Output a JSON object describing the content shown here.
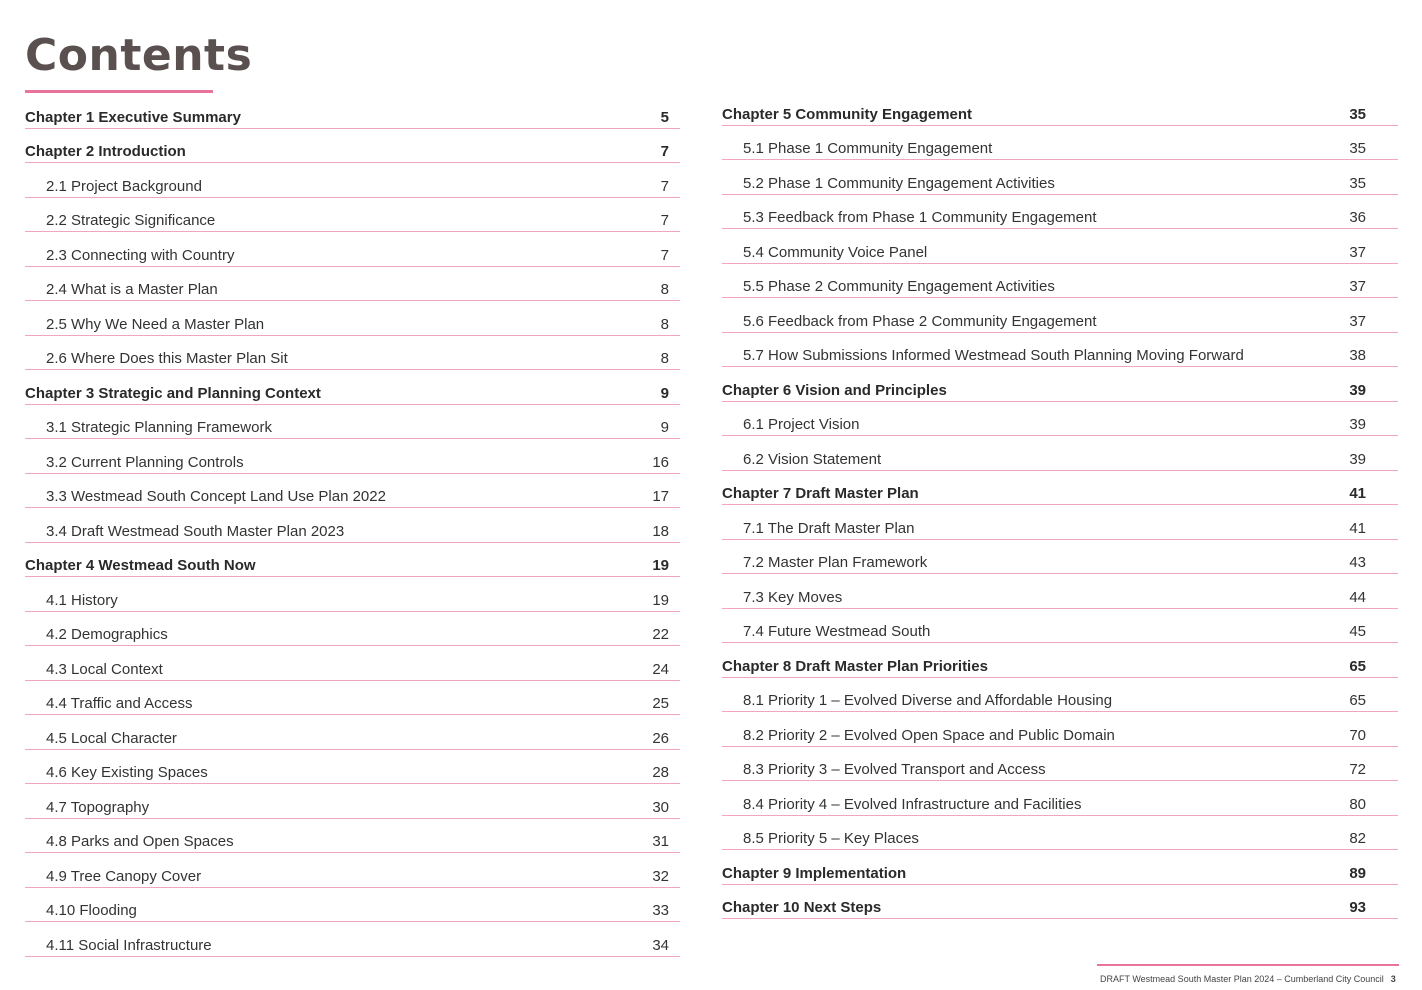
{
  "page": {
    "title": "Contents",
    "accent_color": "#e8739b",
    "rule_color": "#f2a5bd"
  },
  "toc": {
    "left": [
      {
        "level": "chapter",
        "label": "Chapter 1 Executive Summary",
        "page": "5"
      },
      {
        "level": "chapter",
        "label": "Chapter 2 Introduction",
        "page": "7"
      },
      {
        "level": "section",
        "label": "2.1 Project Background",
        "page": "7"
      },
      {
        "level": "section",
        "label": "2.2 Strategic Significance",
        "page": "7"
      },
      {
        "level": "section",
        "label": "2.3 Connecting with Country",
        "page": "7"
      },
      {
        "level": "section",
        "label": "2.4 What is a Master Plan",
        "page": "8"
      },
      {
        "level": "section",
        "label": "2.5 Why We Need a Master Plan",
        "page": "8"
      },
      {
        "level": "section",
        "label": "2.6 Where Does this Master Plan Sit",
        "page": "8"
      },
      {
        "level": "chapter",
        "label": "Chapter 3 Strategic and Planning Context",
        "page": "9"
      },
      {
        "level": "section",
        "label": "3.1 Strategic Planning Framework",
        "page": "9"
      },
      {
        "level": "section",
        "label": "3.2 Current Planning Controls",
        "page": "16"
      },
      {
        "level": "section",
        "label": "3.3 Westmead South Concept Land Use Plan 2022",
        "page": "17"
      },
      {
        "level": "section",
        "label": "3.4 Draft Westmead South Master Plan 2023",
        "page": "18"
      },
      {
        "level": "chapter",
        "label": "Chapter 4 Westmead South Now",
        "page": "19"
      },
      {
        "level": "section",
        "label": "4.1 History",
        "page": "19"
      },
      {
        "level": "section",
        "label": "4.2 Demographics",
        "page": "22"
      },
      {
        "level": "section",
        "label": "4.3 Local Context",
        "page": "24"
      },
      {
        "level": "section",
        "label": "4.4 Traffic and Access",
        "page": "25"
      },
      {
        "level": "section",
        "label": "4.5 Local Character",
        "page": "26"
      },
      {
        "level": "section",
        "label": "4.6 Key Existing Spaces",
        "page": "28"
      },
      {
        "level": "section",
        "label": "4.7 Topography",
        "page": "30"
      },
      {
        "level": "section",
        "label": "4.8 Parks and Open Spaces",
        "page": "31"
      },
      {
        "level": "section",
        "label": "4.9 Tree Canopy Cover",
        "page": "32"
      },
      {
        "level": "section",
        "label": "4.10 Flooding",
        "page": "33"
      },
      {
        "level": "section",
        "label": "4.11 Social Infrastructure",
        "page": "34"
      }
    ],
    "right": [
      {
        "level": "chapter",
        "label": "Chapter 5 Community Engagement",
        "page": "35"
      },
      {
        "level": "section",
        "label": "5.1 Phase 1 Community Engagement",
        "page": "35"
      },
      {
        "level": "section",
        "label": "5.2 Phase 1 Community Engagement Activities",
        "page": "35"
      },
      {
        "level": "section",
        "label": "5.3 Feedback from Phase 1 Community Engagement",
        "page": "36"
      },
      {
        "level": "section",
        "label": "5.4 Community Voice Panel",
        "page": "37"
      },
      {
        "level": "section",
        "label": "5.5 Phase 2 Community Engagement Activities",
        "page": "37"
      },
      {
        "level": "section",
        "label": "5.6 Feedback from Phase 2 Community Engagement",
        "page": "37"
      },
      {
        "level": "section",
        "label": "5.7 How Submissions Informed Westmead South Planning Moving Forward",
        "page": "38"
      },
      {
        "level": "chapter",
        "label": "Chapter 6 Vision and Principles",
        "page": "39"
      },
      {
        "level": "section",
        "label": "6.1 Project Vision",
        "page": "39"
      },
      {
        "level": "section",
        "label": "6.2 Vision Statement",
        "page": "39"
      },
      {
        "level": "chapter",
        "label": "Chapter 7 Draft Master Plan",
        "page": "41"
      },
      {
        "level": "section",
        "label": "7.1 The Draft Master Plan",
        "page": "41"
      },
      {
        "level": "section",
        "label": "7.2 Master Plan Framework",
        "page": "43"
      },
      {
        "level": "section",
        "label": "7.3 Key Moves",
        "page": "44"
      },
      {
        "level": "section",
        "label": "7.4 Future Westmead South",
        "page": "45"
      },
      {
        "level": "chapter",
        "label": "Chapter 8 Draft Master Plan Priorities",
        "page": "65"
      },
      {
        "level": "section",
        "label": "8.1 Priority 1 – Evolved Diverse and Affordable Housing",
        "page": "65"
      },
      {
        "level": "section",
        "label": "8.2 Priority 2 – Evolved Open Space and Public Domain",
        "page": "70"
      },
      {
        "level": "section",
        "label": "8.3 Priority 3 – Evolved Transport and Access",
        "page": "72"
      },
      {
        "level": "section",
        "label": "8.4 Priority 4 – Evolved Infrastructure and Facilities",
        "page": "80"
      },
      {
        "level": "section",
        "label": "8.5 Priority 5 – Key Places",
        "page": "82"
      },
      {
        "level": "chapter",
        "label": "Chapter 9 Implementation",
        "page": "89"
      },
      {
        "level": "chapter",
        "label": "Chapter 10 Next Steps",
        "page": "93"
      }
    ]
  },
  "footer": {
    "text": "DRAFT Westmead South Master Plan 2024 – Cumberland City Council",
    "page_number": "3"
  }
}
